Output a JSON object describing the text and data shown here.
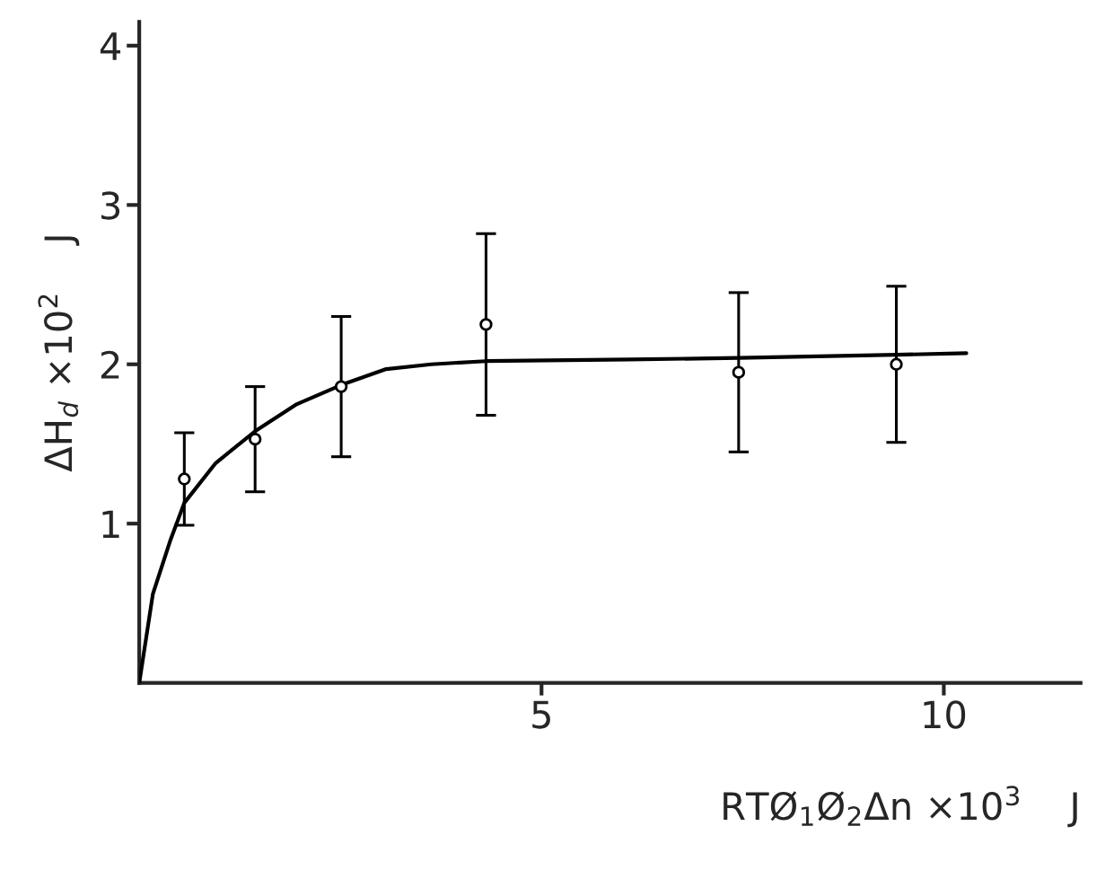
{
  "chart_data": {
    "type": "scatter",
    "xlabel": "RTØ$_{1}$Ø$_{2}$Δn ×10$^{3}$    J",
    "ylabel": "ΔH$_{d}$ ×10$^{2}$    J",
    "xlim": [
      0,
      11.7
    ],
    "ylim": [
      0,
      4.15
    ],
    "xticks": [
      5,
      10
    ],
    "yticks": [
      1,
      2,
      3,
      4
    ],
    "grid": false,
    "series": [
      {
        "marker": "circle",
        "color": "#000000",
        "x": [
          0.56,
          1.44,
          2.51,
          4.31,
          7.45,
          9.41
        ],
        "values": [
          1.28,
          1.53,
          1.86,
          2.25,
          1.95,
          2.0
        ],
        "errors": [
          0.29,
          0.33,
          0.44,
          0.57,
          0.5,
          0.49
        ]
      },
      {
        "type": "line",
        "color": "#000000",
        "marker": "none",
        "x": [
          0,
          0.17,
          0.39,
          0.56,
          0.95,
          1.44,
          1.96,
          2.51,
          3.07,
          3.63,
          4.31,
          6.09,
          7.45,
          9.41,
          10.28
        ],
        "values": [
          0,
          0.56,
          0.9,
          1.13,
          1.38,
          1.58,
          1.75,
          1.87,
          1.97,
          2.0,
          2.02,
          2.03,
          2.04,
          2.06,
          2.07
        ]
      }
    ]
  }
}
